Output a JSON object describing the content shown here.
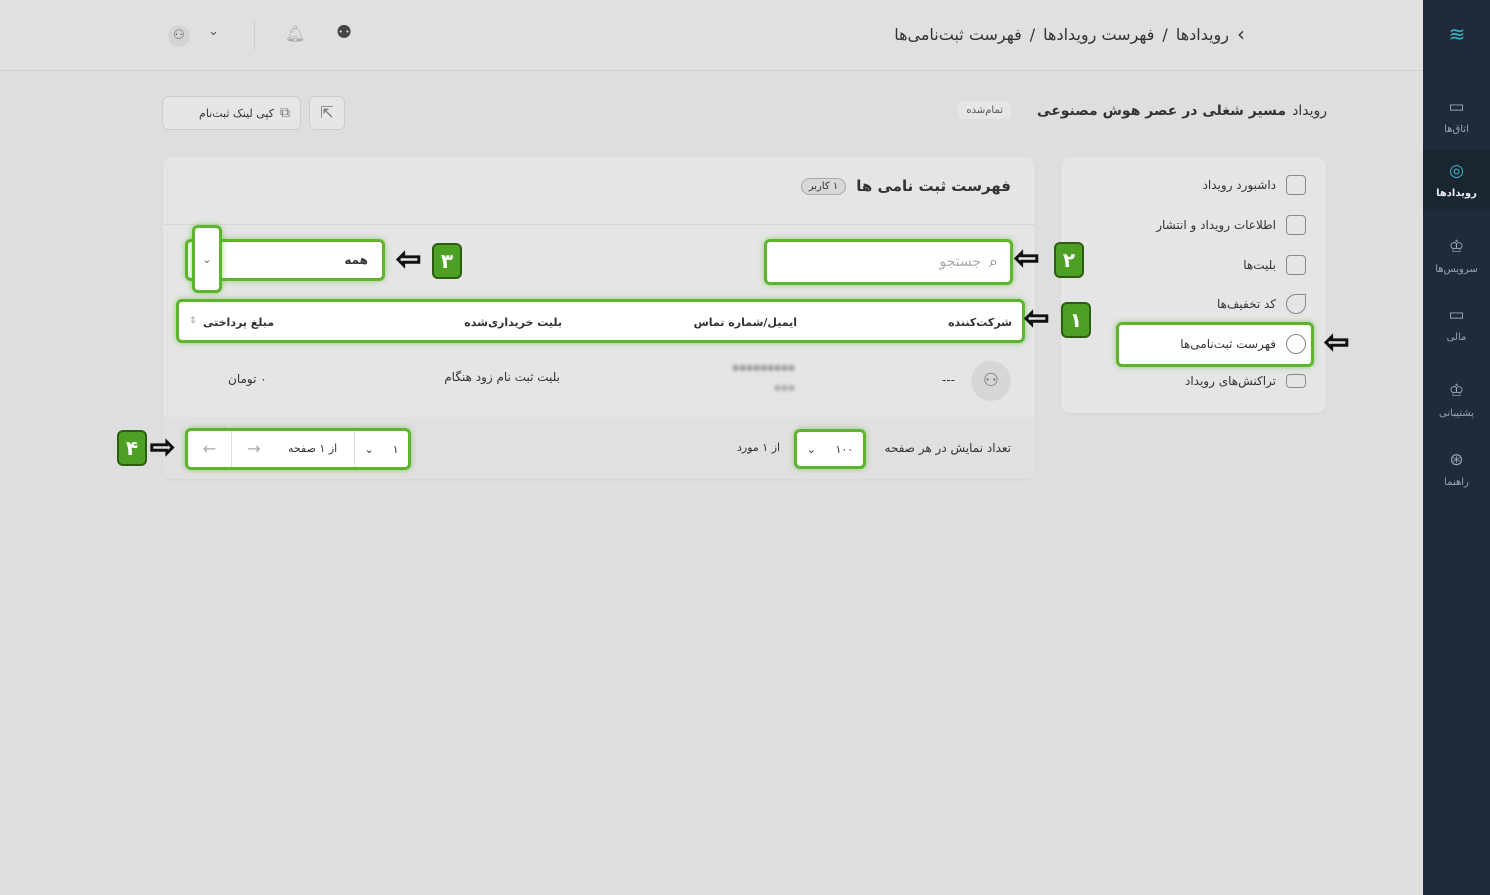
{
  "rail": {
    "items": [
      {
        "label": "اتاق‌ها",
        "icon": "cast-icon"
      },
      {
        "label": "رویدادها",
        "icon": "webcam-icon",
        "active": true
      },
      {
        "label": "سرویس‌ها",
        "icon": "crown-icon"
      },
      {
        "label": "مالی",
        "icon": "card-icon"
      },
      {
        "label": "پشتیبانی",
        "icon": "crown-icon"
      },
      {
        "label": "راهنما",
        "icon": "lifebuoy-icon"
      }
    ]
  },
  "breadcrumb": {
    "items": [
      "رویدادها",
      "فهرست رویدادها",
      "فهرست ثبت‌نامی‌ها"
    ],
    "separator": "/"
  },
  "event": {
    "prefix": "رویداد",
    "name": "مسیر شغلی در عصر هوش مصنوعی",
    "status": "تمام‌شده"
  },
  "actions": {
    "copy_link": "کپی لینک ثبت‌نام"
  },
  "side_menu": {
    "items": [
      {
        "label": "داشبورد رویداد",
        "icon": "grid-icon"
      },
      {
        "label": "اطلاعات رویداد و انتشار",
        "icon": "edit-icon"
      },
      {
        "label": "بلیت‌ها",
        "icon": "ticket-icon"
      },
      {
        "label": "کد تخفیف‌ها",
        "icon": "tag-icon"
      },
      {
        "label": "فهرست ثبت‌نامی‌ها",
        "icon": "users-icon",
        "active": true
      },
      {
        "label": "تراکنش‌های رویداد",
        "icon": "card-icon"
      }
    ]
  },
  "list": {
    "title": "فهرست ثبت نامی ها",
    "count_badge": "۱ کاربر",
    "search_placeholder": "جستجو",
    "filter_value": "همه",
    "columns": [
      "شرکت‌کننده",
      "ایمیل/شماره تماس",
      "بلیت خریداری‌شده",
      "مبلغ پرداختی"
    ],
    "rows": [
      {
        "participant": "---",
        "contact": "●●●●●●●●●",
        "contact2": "●●●",
        "ticket": "بلیت ثبت نام زود هنگام",
        "amount": "۰ تومان"
      }
    ],
    "per_page_label": "تعداد نمایش در هر صفحه",
    "per_page_value": "۱۰۰",
    "total": "از ۱ مورد",
    "page_value": "۱",
    "page_total": "از ۱ صفحه"
  },
  "annotations": [
    "۱",
    "۲",
    "۳",
    "۴"
  ],
  "colors": {
    "highlight": "#5db52e",
    "rail": "#1f2b38",
    "accent": "#36b7c9"
  }
}
